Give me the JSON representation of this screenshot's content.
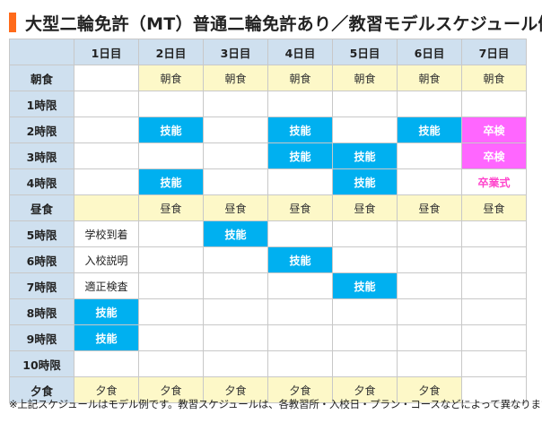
{
  "title": "大型二輪免許（MT）普通二輪免許あり／教習モデルスケジュール例",
  "colors": {
    "accent": "#ff6a1a",
    "header_bg": "#cfe0ef",
    "meal_bg": "#fdf8c8",
    "skill": "#00b0f0",
    "graduation": "#ff66ff",
    "ceremony_text": "#ff44cc"
  },
  "days": [
    "1日目",
    "2日目",
    "3日目",
    "4日目",
    "5日目",
    "6日目",
    "7日目"
  ],
  "rows": [
    {
      "label": "朝食",
      "cells": [
        {
          "text": "",
          "type": "empty"
        },
        {
          "text": "朝食",
          "type": "meal"
        },
        {
          "text": "朝食",
          "type": "meal"
        },
        {
          "text": "朝食",
          "type": "meal"
        },
        {
          "text": "朝食",
          "type": "meal"
        },
        {
          "text": "朝食",
          "type": "meal"
        },
        {
          "text": "朝食",
          "type": "meal"
        }
      ]
    },
    {
      "label": "1時限",
      "cells": [
        {
          "text": "",
          "type": "empty"
        },
        {
          "text": "",
          "type": "empty"
        },
        {
          "text": "",
          "type": "empty"
        },
        {
          "text": "",
          "type": "empty"
        },
        {
          "text": "",
          "type": "empty"
        },
        {
          "text": "",
          "type": "empty"
        },
        {
          "text": "",
          "type": "empty"
        }
      ]
    },
    {
      "label": "2時限",
      "cells": [
        {
          "text": "",
          "type": "empty"
        },
        {
          "text": "技能",
          "type": "skill"
        },
        {
          "text": "",
          "type": "empty"
        },
        {
          "text": "技能",
          "type": "skill"
        },
        {
          "text": "",
          "type": "empty"
        },
        {
          "text": "技能",
          "type": "skill"
        },
        {
          "text": "卒検",
          "type": "grad"
        }
      ]
    },
    {
      "label": "3時限",
      "cells": [
        {
          "text": "",
          "type": "empty"
        },
        {
          "text": "",
          "type": "empty"
        },
        {
          "text": "",
          "type": "empty"
        },
        {
          "text": "技能",
          "type": "skill"
        },
        {
          "text": "技能",
          "type": "skill"
        },
        {
          "text": "",
          "type": "empty"
        },
        {
          "text": "卒検",
          "type": "grad"
        }
      ]
    },
    {
      "label": "4時限",
      "cells": [
        {
          "text": "",
          "type": "empty"
        },
        {
          "text": "技能",
          "type": "skill"
        },
        {
          "text": "",
          "type": "empty"
        },
        {
          "text": "",
          "type": "empty"
        },
        {
          "text": "技能",
          "type": "skill"
        },
        {
          "text": "",
          "type": "empty"
        },
        {
          "text": "卒業式",
          "type": "ceremony"
        }
      ]
    },
    {
      "label": "昼食",
      "cells": [
        {
          "text": "",
          "type": "meal"
        },
        {
          "text": "昼食",
          "type": "meal"
        },
        {
          "text": "昼食",
          "type": "meal"
        },
        {
          "text": "昼食",
          "type": "meal"
        },
        {
          "text": "昼食",
          "type": "meal"
        },
        {
          "text": "昼食",
          "type": "meal"
        },
        {
          "text": "昼食",
          "type": "meal"
        }
      ]
    },
    {
      "label": "5時限",
      "cells": [
        {
          "text": "学校到着",
          "type": "note"
        },
        {
          "text": "",
          "type": "empty"
        },
        {
          "text": "技能",
          "type": "skill"
        },
        {
          "text": "",
          "type": "empty"
        },
        {
          "text": "",
          "type": "empty"
        },
        {
          "text": "",
          "type": "empty"
        },
        {
          "text": "",
          "type": "empty"
        }
      ]
    },
    {
      "label": "6時限",
      "cells": [
        {
          "text": "入校説明",
          "type": "note"
        },
        {
          "text": "",
          "type": "empty"
        },
        {
          "text": "",
          "type": "empty"
        },
        {
          "text": "技能",
          "type": "skill"
        },
        {
          "text": "",
          "type": "empty"
        },
        {
          "text": "",
          "type": "empty"
        },
        {
          "text": "",
          "type": "empty"
        }
      ]
    },
    {
      "label": "7時限",
      "cells": [
        {
          "text": "適正検査",
          "type": "note"
        },
        {
          "text": "",
          "type": "empty"
        },
        {
          "text": "",
          "type": "empty"
        },
        {
          "text": "",
          "type": "empty"
        },
        {
          "text": "技能",
          "type": "skill"
        },
        {
          "text": "",
          "type": "empty"
        },
        {
          "text": "",
          "type": "empty"
        }
      ]
    },
    {
      "label": "8時限",
      "cells": [
        {
          "text": "技能",
          "type": "skill"
        },
        {
          "text": "",
          "type": "empty"
        },
        {
          "text": "",
          "type": "empty"
        },
        {
          "text": "",
          "type": "empty"
        },
        {
          "text": "",
          "type": "empty"
        },
        {
          "text": "",
          "type": "empty"
        },
        {
          "text": "",
          "type": "empty"
        }
      ]
    },
    {
      "label": "9時限",
      "cells": [
        {
          "text": "技能",
          "type": "skill"
        },
        {
          "text": "",
          "type": "empty"
        },
        {
          "text": "",
          "type": "empty"
        },
        {
          "text": "",
          "type": "empty"
        },
        {
          "text": "",
          "type": "empty"
        },
        {
          "text": "",
          "type": "empty"
        },
        {
          "text": "",
          "type": "empty"
        }
      ]
    },
    {
      "label": "10時限",
      "cells": [
        {
          "text": "",
          "type": "empty"
        },
        {
          "text": "",
          "type": "empty"
        },
        {
          "text": "",
          "type": "empty"
        },
        {
          "text": "",
          "type": "empty"
        },
        {
          "text": "",
          "type": "empty"
        },
        {
          "text": "",
          "type": "empty"
        },
        {
          "text": "",
          "type": "empty"
        }
      ]
    },
    {
      "label": "夕食",
      "cells": [
        {
          "text": "夕食",
          "type": "meal"
        },
        {
          "text": "夕食",
          "type": "meal"
        },
        {
          "text": "夕食",
          "type": "meal"
        },
        {
          "text": "夕食",
          "type": "meal"
        },
        {
          "text": "夕食",
          "type": "meal"
        },
        {
          "text": "夕食",
          "type": "meal"
        },
        {
          "text": "",
          "type": "empty"
        }
      ]
    }
  ],
  "footnote": "※上記スケジュールはモデル例です。教習スケジュールは、各教習所・入校日・プラン・コースなどによって異なります。"
}
